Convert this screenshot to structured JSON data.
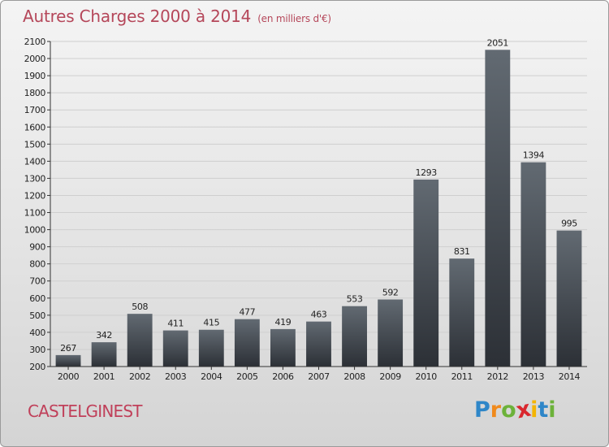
{
  "header": {
    "title": "Autres Charges 2000 à 2014",
    "subtitle": "(en milliers d'€)"
  },
  "footer": {
    "place": "CASTELGINEST",
    "logo_letters": [
      "P",
      "r",
      "o",
      "x",
      "i",
      "t",
      "i"
    ],
    "logo_colors": [
      "#2e86c8",
      "#f08a1c",
      "#6cb23a",
      "#d9272e",
      "#f4b400",
      "#2e86c8",
      "#6cb23a"
    ]
  },
  "colors": {
    "bar_light": "#626a72",
    "bar_dark": "#2c3036",
    "axis": "#333333",
    "grid": "#cfcfcf",
    "text": "#222222"
  },
  "chart_data": {
    "type": "bar",
    "title": "Autres Charges 2000 à 2014",
    "subtitle": "(en milliers d'€)",
    "categories": [
      "2000",
      "2001",
      "2002",
      "2003",
      "2004",
      "2005",
      "2006",
      "2007",
      "2008",
      "2009",
      "2010",
      "2011",
      "2012",
      "2013",
      "2014"
    ],
    "values": [
      267,
      342,
      508,
      411,
      415,
      477,
      419,
      463,
      553,
      592,
      1293,
      831,
      2051,
      1394,
      995
    ],
    "data_labels": [
      "267",
      "342",
      "508",
      "411",
      "415",
      "477",
      "419",
      "463",
      "553",
      "592",
      "1293",
      "831",
      "2051",
      "1394",
      "995"
    ],
    "ylim": [
      200,
      2100
    ],
    "yticks": [
      200,
      300,
      400,
      500,
      600,
      700,
      800,
      900,
      1000,
      1100,
      1200,
      1300,
      1400,
      1500,
      1600,
      1700,
      1800,
      1900,
      2000,
      2100
    ],
    "ytick_labels": [
      "200",
      "300",
      "400",
      "500",
      "600",
      "700",
      "800",
      "900",
      "1000",
      "1100",
      "1200",
      "1300",
      "1400",
      "1500",
      "1600",
      "1700",
      "1800",
      "1900",
      "2000",
      "2100"
    ],
    "xlabel": "",
    "ylabel": "",
    "grid": true,
    "legend": "none"
  }
}
